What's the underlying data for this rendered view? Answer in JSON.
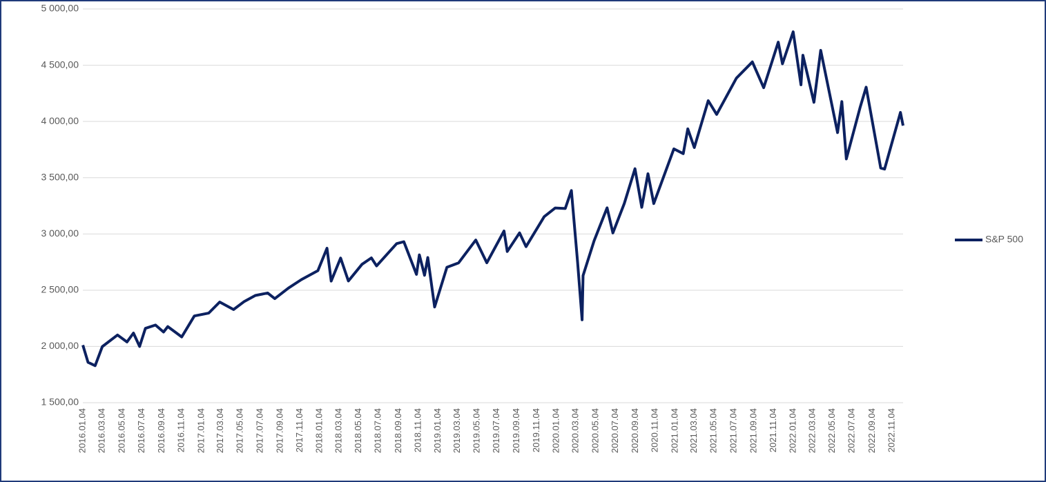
{
  "chart_data": {
    "type": "line",
    "x": [
      "2016.01.04",
      "2016.01.20",
      "2016.02.11",
      "2016.03.04",
      "2016.04.20",
      "2016.05.19",
      "2016.06.08",
      "2016.06.27",
      "2016.07.15",
      "2016.08.15",
      "2016.09.09",
      "2016.09.22",
      "2016.11.04",
      "2016.12.13",
      "2017.01.26",
      "2017.03.01",
      "2017.04.13",
      "2017.05.16",
      "2017.06.19",
      "2017.07.27",
      "2017.08.18",
      "2017.09.29",
      "2017.11.08",
      "2017.12.29",
      "2018.01.26",
      "2018.02.08",
      "2018.03.09",
      "2018.04.02",
      "2018.05.14",
      "2018.06.12",
      "2018.06.28",
      "2018.08.29",
      "2018.09.20",
      "2018.10.29",
      "2018.11.07",
      "2018.11.23",
      "2018.12.03",
      "2018.12.24",
      "2019.01.31",
      "2019.03.08",
      "2019.04.30",
      "2019.06.03",
      "2019.07.26",
      "2019.08.05",
      "2019.09.12",
      "2019.10.02",
      "2019.11.27",
      "2019.12.31",
      "2020.01.31",
      "2020.02.19",
      "2020.03.09",
      "2020.03.23",
      "2020.03.26",
      "2020.04.29",
      "2020.06.08",
      "2020.06.26",
      "2020.07.31",
      "2020.09.02",
      "2020.09.23",
      "2020.10.12",
      "2020.10.30",
      "2020.12.31",
      "2021.01.29",
      "2021.02.12",
      "2021.03.04",
      "2021.04.16",
      "2021.05.12",
      "2021.07.12",
      "2021.08.30",
      "2021.10.04",
      "2021.11.18",
      "2021.12.01",
      "2022.01.03",
      "2022.01.27",
      "2022.02.02",
      "2022.03.08",
      "2022.03.29",
      "2022.05.20",
      "2022.06.02",
      "2022.06.16",
      "2022.07.29",
      "2022.08.16",
      "2022.09.30",
      "2022.10.12",
      "2022.11.30",
      "2022.12.08"
    ],
    "series": [
      {
        "name": "S&P 500",
        "color": "#0c2160",
        "values": [
          2012,
          1859,
          1829,
          1999,
          2102,
          2040,
          2119,
          2000,
          2161,
          2190,
          2128,
          2177,
          2085,
          2271,
          2296,
          2395,
          2328,
          2400,
          2453,
          2475,
          2425,
          2519,
          2594,
          2674,
          2873,
          2581,
          2786,
          2582,
          2730,
          2787,
          2716,
          2914,
          2931,
          2641,
          2814,
          2633,
          2790,
          2351,
          2704,
          2743,
          2946,
          2744,
          3026,
          2844,
          3010,
          2887,
          3154,
          3231,
          3226,
          3386,
          2747,
          2237,
          2630,
          2940,
          3232,
          3009,
          3271,
          3580,
          3237,
          3535,
          3270,
          3756,
          3714,
          3934,
          3768,
          4185,
          4063,
          4385,
          4529,
          4300,
          4705,
          4513,
          4797,
          4326,
          4589,
          4170,
          4632,
          3901,
          4177,
          3667,
          4130,
          4305,
          3586,
          3577,
          4080,
          3963
        ]
      }
    ],
    "xlim": [
      "2016.01.04",
      "2022.12.08"
    ],
    "xticks": [
      "2016.01.04",
      "2016.03.04",
      "2016.05.04",
      "2016.07.04",
      "2016.09.04",
      "2016.11.04",
      "2017.01.04",
      "2017.03.04",
      "2017.05.04",
      "2017.07.04",
      "2017.09.04",
      "2017.11.04",
      "2018.01.04",
      "2018.03.04",
      "2018.05.04",
      "2018.07.04",
      "2018.09.04",
      "2018.11.04",
      "2019.01.04",
      "2019.03.04",
      "2019.05.04",
      "2019.07.04",
      "2019.09.04",
      "2019.11.04",
      "2020.01.04",
      "2020.03.04",
      "2020.05.04",
      "2020.07.04",
      "2020.09.04",
      "2020.11.04",
      "2021.01.04",
      "2021.03.04",
      "2021.05.04",
      "2021.07.04",
      "2021.09.04",
      "2021.11.04",
      "2022.01.04",
      "2022.03.04",
      "2022.05.04",
      "2022.07.04",
      "2022.09.04",
      "2022.11.04"
    ],
    "ylim": [
      1500,
      5000
    ],
    "yticks": [
      {
        "value": 1500,
        "label": "1 500,00"
      },
      {
        "value": 2000,
        "label": "2 000,00"
      },
      {
        "value": 2500,
        "label": "2 500,00"
      },
      {
        "value": 3000,
        "label": "3 000,00"
      },
      {
        "value": 3500,
        "label": "3 500,00"
      },
      {
        "value": 4000,
        "label": "4 000,00"
      },
      {
        "value": 4500,
        "label": "4 500,00"
      },
      {
        "value": 5000,
        "label": "5 000,00"
      }
    ],
    "grid": true,
    "legend": "right"
  }
}
